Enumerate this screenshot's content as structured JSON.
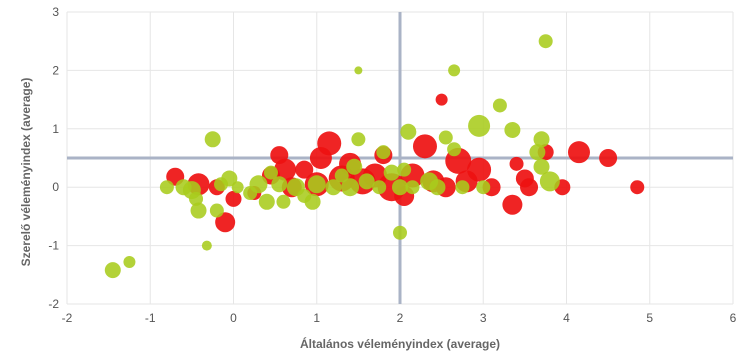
{
  "chart_data": {
    "type": "scatter",
    "title": "",
    "xlabel": "Általános véleményindex (average)",
    "ylabel": "Szerelő véleményindex (average)",
    "xlim": [
      -2,
      6
    ],
    "ylim": [
      -2,
      3
    ],
    "x_ticks": [
      "-2",
      "-1",
      "0",
      "1",
      "2",
      "3",
      "4",
      "5",
      "6"
    ],
    "y_ticks": [
      "3",
      "2",
      "1",
      "0",
      "-1",
      "-2"
    ],
    "grid": true,
    "legend": "none",
    "reference_lines": {
      "x": 2,
      "y": 0.5
    },
    "series": [
      {
        "color": "#ee1111",
        "points": [
          {
            "x": -0.7,
            "y": 0.18,
            "size": 9
          },
          {
            "x": -0.42,
            "y": 0.05,
            "size": 11
          },
          {
            "x": -0.2,
            "y": 0.0,
            "size": 8
          },
          {
            "x": -0.1,
            "y": -0.6,
            "size": 10
          },
          {
            "x": 0.0,
            "y": -0.2,
            "size": 8
          },
          {
            "x": 0.25,
            "y": -0.1,
            "size": 7
          },
          {
            "x": 0.45,
            "y": 0.2,
            "size": 9
          },
          {
            "x": 0.55,
            "y": 0.55,
            "size": 9
          },
          {
            "x": 0.62,
            "y": 0.3,
            "size": 11
          },
          {
            "x": 0.7,
            "y": 0.0,
            "size": 10
          },
          {
            "x": 0.85,
            "y": 0.3,
            "size": 9
          },
          {
            "x": 1.0,
            "y": 0.05,
            "size": 12
          },
          {
            "x": 1.05,
            "y": 0.5,
            "size": 11
          },
          {
            "x": 1.15,
            "y": 0.75,
            "size": 12
          },
          {
            "x": 1.3,
            "y": 0.15,
            "size": 13
          },
          {
            "x": 1.4,
            "y": 0.4,
            "size": 11
          },
          {
            "x": 1.55,
            "y": 0.1,
            "size": 13
          },
          {
            "x": 1.7,
            "y": 0.2,
            "size": 12
          },
          {
            "x": 1.8,
            "y": 0.55,
            "size": 9
          },
          {
            "x": 1.9,
            "y": 0.0,
            "size": 14
          },
          {
            "x": 2.05,
            "y": -0.15,
            "size": 10
          },
          {
            "x": 2.15,
            "y": 0.2,
            "size": 12
          },
          {
            "x": 2.3,
            "y": 0.7,
            "size": 12
          },
          {
            "x": 2.4,
            "y": 0.1,
            "size": 11
          },
          {
            "x": 2.5,
            "y": 1.5,
            "size": 6
          },
          {
            "x": 2.55,
            "y": 0.0,
            "size": 10
          },
          {
            "x": 2.7,
            "y": 0.45,
            "size": 13
          },
          {
            "x": 2.8,
            "y": 0.1,
            "size": 11
          },
          {
            "x": 2.95,
            "y": 0.3,
            "size": 12
          },
          {
            "x": 3.1,
            "y": 0.0,
            "size": 9
          },
          {
            "x": 3.35,
            "y": -0.3,
            "size": 10
          },
          {
            "x": 3.4,
            "y": 0.4,
            "size": 7
          },
          {
            "x": 3.5,
            "y": 0.15,
            "size": 9
          },
          {
            "x": 3.55,
            "y": 0.0,
            "size": 9
          },
          {
            "x": 3.75,
            "y": 0.6,
            "size": 8
          },
          {
            "x": 3.95,
            "y": 0.0,
            "size": 8
          },
          {
            "x": 4.15,
            "y": 0.6,
            "size": 11
          },
          {
            "x": 4.5,
            "y": 0.5,
            "size": 9
          },
          {
            "x": 4.85,
            "y": 0.0,
            "size": 7
          }
        ]
      },
      {
        "color": "#a9cc1c",
        "points": [
          {
            "x": -1.45,
            "y": -1.42,
            "size": 8
          },
          {
            "x": -1.25,
            "y": -1.28,
            "size": 6
          },
          {
            "x": -0.8,
            "y": 0.0,
            "size": 7
          },
          {
            "x": -0.6,
            "y": 0.0,
            "size": 8
          },
          {
            "x": -0.5,
            "y": -0.05,
            "size": 9
          },
          {
            "x": -0.45,
            "y": -0.2,
            "size": 7
          },
          {
            "x": -0.42,
            "y": -0.4,
            "size": 8
          },
          {
            "x": -0.32,
            "y": -1.0,
            "size": 5
          },
          {
            "x": -0.25,
            "y": 0.82,
            "size": 8
          },
          {
            "x": -0.2,
            "y": -0.4,
            "size": 7
          },
          {
            "x": -0.15,
            "y": 0.05,
            "size": 7
          },
          {
            "x": -0.05,
            "y": 0.15,
            "size": 8
          },
          {
            "x": 0.05,
            "y": 0.0,
            "size": 6
          },
          {
            "x": 0.2,
            "y": -0.1,
            "size": 7
          },
          {
            "x": 0.3,
            "y": 0.05,
            "size": 9
          },
          {
            "x": 0.4,
            "y": -0.25,
            "size": 8
          },
          {
            "x": 0.45,
            "y": 0.25,
            "size": 7
          },
          {
            "x": 0.55,
            "y": 0.05,
            "size": 8
          },
          {
            "x": 0.6,
            "y": -0.25,
            "size": 7
          },
          {
            "x": 0.75,
            "y": 0.0,
            "size": 9
          },
          {
            "x": 0.85,
            "y": -0.15,
            "size": 7
          },
          {
            "x": 0.95,
            "y": -0.25,
            "size": 8
          },
          {
            "x": 1.0,
            "y": 0.05,
            "size": 9
          },
          {
            "x": 1.2,
            "y": 0.0,
            "size": 8
          },
          {
            "x": 1.3,
            "y": 0.2,
            "size": 7
          },
          {
            "x": 1.4,
            "y": 0.0,
            "size": 9
          },
          {
            "x": 1.45,
            "y": 0.35,
            "size": 8
          },
          {
            "x": 1.5,
            "y": 0.82,
            "size": 7
          },
          {
            "x": 1.5,
            "y": 2.0,
            "size": 4
          },
          {
            "x": 1.6,
            "y": 0.1,
            "size": 8
          },
          {
            "x": 1.75,
            "y": 0.0,
            "size": 7
          },
          {
            "x": 1.8,
            "y": 0.6,
            "size": 7
          },
          {
            "x": 1.9,
            "y": 0.25,
            "size": 8
          },
          {
            "x": 2.0,
            "y": 0.0,
            "size": 8
          },
          {
            "x": 2.0,
            "y": -0.78,
            "size": 7
          },
          {
            "x": 2.05,
            "y": 0.3,
            "size": 7
          },
          {
            "x": 2.1,
            "y": 0.95,
            "size": 8
          },
          {
            "x": 2.15,
            "y": 0.0,
            "size": 7
          },
          {
            "x": 2.35,
            "y": 0.1,
            "size": 9
          },
          {
            "x": 2.45,
            "y": 0.0,
            "size": 8
          },
          {
            "x": 2.55,
            "y": 0.85,
            "size": 7
          },
          {
            "x": 2.65,
            "y": 0.65,
            "size": 7
          },
          {
            "x": 2.65,
            "y": 2.0,
            "size": 6
          },
          {
            "x": 2.75,
            "y": 0.0,
            "size": 7
          },
          {
            "x": 2.95,
            "y": 1.05,
            "size": 11
          },
          {
            "x": 3.0,
            "y": 0.0,
            "size": 7
          },
          {
            "x": 3.2,
            "y": 1.4,
            "size": 7
          },
          {
            "x": 3.35,
            "y": 0.98,
            "size": 8
          },
          {
            "x": 3.65,
            "y": 0.6,
            "size": 8
          },
          {
            "x": 3.7,
            "y": 0.82,
            "size": 8
          },
          {
            "x": 3.7,
            "y": 0.35,
            "size": 8
          },
          {
            "x": 3.75,
            "y": 2.5,
            "size": 7
          },
          {
            "x": 3.8,
            "y": 0.1,
            "size": 10
          }
        ]
      }
    ]
  }
}
